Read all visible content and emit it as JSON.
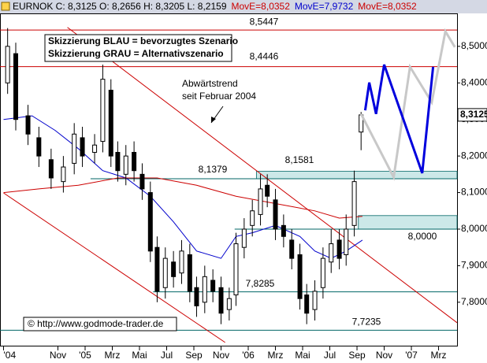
{
  "chart_data": {
    "type": "candlestick",
    "header": [
      {
        "text": "EURNOK C: 8,3125 O: 8,2656 H: 8,3205 L: 8,2159",
        "color": "#000000"
      },
      {
        "text": "MovE=8,0352",
        "color": "#cc0000"
      },
      {
        "text": "MovE=7,9732",
        "color": "#0000cc"
      },
      {
        "text": "MovE=8,0352",
        "color": "#cc0000"
      }
    ],
    "x": [
      -5.7,
      -5.1,
      -4.2,
      -3.4,
      -2.5,
      -1.6,
      -0.8,
      -0.2,
      0.7,
      1.3,
      1.9,
      2.4,
      3.0,
      3.6,
      4.2,
      4.8,
      5.3,
      5.9,
      6.5,
      7.1,
      7.7,
      8.2,
      8.8,
      9.4,
      10.0,
      10.6,
      11.1,
      11.7,
      12.3,
      12.9,
      13.4,
      14.0,
      14.6,
      15.2,
      15.8,
      16.3,
      16.9,
      17.5,
      18.1,
      18.7,
      19.2,
      19.8,
      20.3
    ],
    "open": [
      8.4,
      8.48,
      8.31,
      8.25,
      8.19,
      8.13,
      8.18,
      8.25,
      8.21,
      8.24,
      8.38,
      8.21,
      8.15,
      8.21,
      8.15,
      8.1,
      7.95,
      7.84,
      7.91,
      7.88,
      7.93,
      7.84,
      7.8,
      7.86,
      7.84,
      7.78,
      7.82,
      7.95,
      8.01,
      8.04,
      8.12,
      8.08,
      8.01,
      7.97,
      7.93,
      7.82,
      7.78,
      7.84,
      7.91,
      7.97,
      7.93,
      8.01,
      8.2656
    ],
    "high": [
      8.55,
      8.51,
      8.34,
      8.28,
      8.22,
      8.2,
      8.29,
      8.28,
      8.26,
      8.45,
      8.41,
      8.24,
      8.23,
      8.24,
      8.18,
      8.13,
      7.98,
      7.95,
      7.94,
      7.97,
      7.96,
      7.87,
      7.9,
      7.89,
      7.87,
      7.84,
      7.99,
      8.03,
      8.08,
      8.15,
      8.15,
      8.11,
      8.04,
      8.0,
      7.96,
      7.85,
      7.86,
      7.95,
      8.0,
      8.0,
      8.04,
      8.16,
      8.3205
    ],
    "low": [
      8.37,
      8.27,
      8.23,
      8.17,
      8.11,
      8.1,
      8.15,
      8.17,
      8.18,
      8.21,
      8.17,
      8.13,
      8.12,
      8.13,
      8.08,
      7.91,
      7.8,
      7.81,
      7.84,
      7.85,
      7.8,
      7.76,
      7.77,
      7.8,
      7.74,
      7.75,
      7.79,
      7.92,
      7.98,
      8.01,
      8.06,
      7.97,
      7.95,
      7.89,
      7.78,
      7.74,
      7.75,
      7.81,
      7.88,
      7.89,
      7.9,
      7.98,
      8.2159
    ],
    "close": [
      8.5,
      8.3,
      8.26,
      8.2,
      8.14,
      8.17,
      8.26,
      8.2,
      8.23,
      8.41,
      8.2,
      8.16,
      8.2,
      8.16,
      8.11,
      7.94,
      7.83,
      7.92,
      7.87,
      7.94,
      7.83,
      7.79,
      7.87,
      7.83,
      7.77,
      7.81,
      7.96,
      8.0,
      8.05,
      8.11,
      8.09,
      8.0,
      7.98,
      7.92,
      7.81,
      7.77,
      7.83,
      7.92,
      7.96,
      7.92,
      8.0,
      8.13,
      8.3125
    ],
    "color_up": "#ffffff",
    "color_down": "#000000",
    "xlim": [
      -6.26,
      27.36
    ],
    "ylim": [
      7.679,
      8.588
    ],
    "xticks": [
      {
        "value": -6,
        "label": "'04"
      },
      {
        "value": -2,
        "label": "Nov"
      },
      {
        "value": 0,
        "label": "'05"
      },
      {
        "value": 2,
        "label": "Mrz"
      },
      {
        "value": 4,
        "label": "Mai"
      },
      {
        "value": 6,
        "label": "Jul"
      },
      {
        "value": 8,
        "label": "Sep"
      },
      {
        "value": 10,
        "label": "Nov"
      },
      {
        "value": 12,
        "label": "'06"
      },
      {
        "value": 14,
        "label": "Mrz"
      },
      {
        "value": 16,
        "label": "Mai"
      },
      {
        "value": 18,
        "label": "Jul"
      },
      {
        "value": 20,
        "label": "Sep"
      },
      {
        "value": 22,
        "label": "Nov"
      },
      {
        "value": 24,
        "label": "'07"
      },
      {
        "value": 26,
        "label": "Mrz"
      }
    ],
    "yticks": [
      {
        "value": 7.8,
        "label": "7,8000"
      },
      {
        "value": 7.9,
        "label": "7,9000"
      },
      {
        "value": 8.0,
        "label": "8,0000"
      },
      {
        "value": 8.1,
        "label": "8,1000"
      },
      {
        "value": 8.2,
        "label": "8,2000"
      },
      {
        "value": 8.3,
        "label": "8,3000"
      },
      {
        "value": 8.4,
        "label": "8,4000"
      },
      {
        "value": 8.5,
        "label": "8,5000"
      }
    ],
    "last_price": {
      "value": 8.3125,
      "label": "8,3125"
    },
    "moving_averages": [
      {
        "color": "#0000cc",
        "x": [
          -6.0,
          -3.9,
          -2.2,
          -0.5,
          1.3,
          3.0,
          4.8,
          6.5,
          8.2,
          10.0,
          11.1,
          12.3,
          14.0,
          15.8,
          16.9,
          18.1,
          19.2,
          20.4
        ],
        "values": [
          8.3,
          8.31,
          8.27,
          8.22,
          8.16,
          8.14,
          8.09,
          8.02,
          7.94,
          7.92,
          7.98,
          7.99,
          8.01,
          7.98,
          7.94,
          7.92,
          7.94,
          7.97
        ]
      },
      {
        "color": "#cc0000",
        "x": [
          -6.0,
          -3.4,
          -0.5,
          2.4,
          5.3,
          8.2,
          11.1,
          14.0,
          16.9,
          18.7,
          20.4
        ],
        "values": [
          8.1,
          8.11,
          8.12,
          8.14,
          8.14,
          8.12,
          8.09,
          8.07,
          8.05,
          8.03,
          8.035
        ]
      }
    ],
    "levels": [
      {
        "value": 8.5447,
        "label": "8,5447",
        "color": "#cc0000",
        "from": -6.26
      },
      {
        "value": 8.4446,
        "label": "8,4446",
        "color": "#cc0000",
        "from": -6.26
      },
      {
        "value": 8.1379,
        "label": "8,1379",
        "color": "#006666",
        "from": 0.4
      },
      {
        "value": 8.0,
        "label": "8,0000",
        "color": "#006666",
        "from": 11.0
      },
      {
        "value": 7.8285,
        "label": "7,8285",
        "color": "#006666",
        "from": 5.0
      },
      {
        "value": 7.7235,
        "label": "7,7235",
        "color": "#006666",
        "from": -6.26
      }
    ],
    "zones": [
      {
        "x": [
          12.6,
          27.36
        ],
        "y": [
          8.1379,
          8.1581
        ],
        "label": "8,1581",
        "color": "#cce8e8"
      },
      {
        "x": [
          20.1,
          27.36
        ],
        "y": [
          8.0,
          8.037
        ],
        "color": "#cce8e8"
      }
    ],
    "trendlines": [
      {
        "color": "#cc0000",
        "x": [
          -1.3,
          27.36
        ],
        "values": [
          8.552,
          7.744
        ]
      },
      {
        "color": "#cc0000",
        "x": [
          -6.0,
          10.3
        ],
        "values": [
          8.099,
          7.69
        ]
      }
    ],
    "scenarios": [
      {
        "color": "#c8c8c8",
        "x": [
          20.3,
          22.7,
          23.9,
          25.5,
          26.5,
          27.2
        ],
        "values": [
          8.315,
          8.142,
          8.444,
          8.347,
          8.541,
          8.498
        ]
      },
      {
        "color": "#0000dd",
        "x": [
          20.6,
          20.9,
          21.4,
          22.0,
          24.8,
          25.6
        ],
        "values": [
          8.325,
          8.401,
          8.315,
          8.45,
          8.153,
          8.444
        ]
      }
    ],
    "notes": {
      "legend": [
        "Skizzierung BLAU = bevorzugtes Szenario",
        "Skizzierung GRAU = Alternativszenario"
      ],
      "trend": [
        "Abwärtstrend",
        "seit Februar 2004"
      ],
      "copyright": "© http://www.godmode-trader.de"
    }
  }
}
